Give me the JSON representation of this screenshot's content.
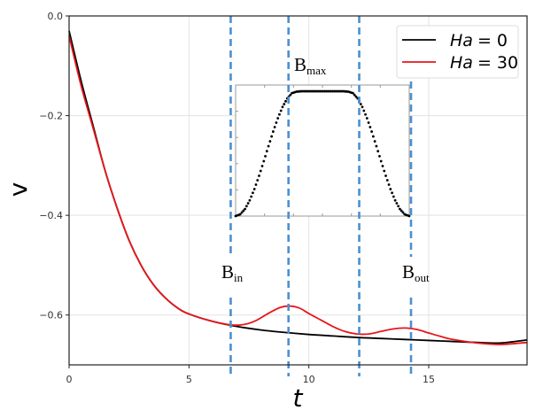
{
  "chart_data": [
    {
      "type": "line",
      "xlabel": "t",
      "ylabel": "v",
      "xlim": [
        0,
        19.1
      ],
      "ylim": [
        -0.7,
        0.0
      ],
      "xticks": [
        0,
        5,
        10,
        15
      ],
      "xtick_labels": [
        "0",
        "5",
        "10",
        "15"
      ],
      "yticks": [
        0.0,
        -0.2,
        -0.4,
        -0.6
      ],
      "ytick_labels": [
        "0.0",
        "−0.2",
        "−0.4",
        "−0.6"
      ],
      "grid": true,
      "legend_placement": "top-right",
      "series": [
        {
          "name": "Ha = 0",
          "legend_label": "Ha",
          "legend_value": "= 0",
          "color": "#000000",
          "x": [
            0,
            0.5,
            1,
            1.5,
            2,
            2.5,
            3,
            3.5,
            4,
            4.5,
            5,
            6,
            7,
            8,
            9,
            10,
            11,
            12,
            13,
            14,
            15,
            16,
            17,
            18,
            19.1
          ],
          "y": [
            -0.03,
            -0.13,
            -0.22,
            -0.31,
            -0.385,
            -0.45,
            -0.5,
            -0.538,
            -0.565,
            -0.585,
            -0.598,
            -0.613,
            -0.623,
            -0.63,
            -0.635,
            -0.639,
            -0.642,
            -0.645,
            -0.647,
            -0.649,
            -0.651,
            -0.653,
            -0.655,
            -0.656,
            -0.65
          ]
        },
        {
          "name": "Ha = 30",
          "legend_label": "Ha",
          "legend_value": "= 30",
          "color": "#e8161b",
          "x": [
            0,
            0.5,
            1,
            1.5,
            2,
            2.5,
            3,
            3.5,
            4,
            4.5,
            5,
            6,
            6.8,
            7.3,
            7.8,
            8.3,
            8.8,
            9.2,
            9.6,
            10,
            10.5,
            11,
            11.5,
            12,
            12.5,
            13,
            13.5,
            14,
            14.5,
            15,
            15.5,
            16,
            17,
            18,
            19.1
          ],
          "y": [
            -0.04,
            -0.14,
            -0.225,
            -0.31,
            -0.385,
            -0.45,
            -0.5,
            -0.538,
            -0.565,
            -0.585,
            -0.598,
            -0.613,
            -0.62,
            -0.619,
            -0.611,
            -0.597,
            -0.585,
            -0.582,
            -0.586,
            -0.597,
            -0.61,
            -0.623,
            -0.633,
            -0.638,
            -0.638,
            -0.633,
            -0.628,
            -0.626,
            -0.629,
            -0.636,
            -0.643,
            -0.649,
            -0.656,
            -0.659,
            -0.655
          ]
        }
      ],
      "vlines": {
        "color": "#4b8fd0",
        "style": "dashed",
        "x": [
          6.74,
          9.15,
          12.1,
          14.26
        ]
      },
      "annotations": [
        {
          "base": "B",
          "sub": "in"
        },
        {
          "base": "B",
          "sub": "max"
        },
        {
          "base": "B",
          "sub": "out"
        }
      ]
    },
    {
      "type": "scatter",
      "role": "inset",
      "color": "#000000",
      "xlim": [
        6.8,
        14.2
      ],
      "ylim": [
        0,
        1.05
      ],
      "x": [
        6.8,
        7.0,
        7.2,
        7.4,
        7.6,
        7.8,
        8.0,
        8.2,
        8.4,
        8.6,
        8.8,
        9.0,
        9.2,
        9.4,
        9.6,
        9.8,
        10.0,
        10.2,
        10.4,
        10.6,
        10.8,
        11.0,
        11.2,
        11.4,
        11.6,
        11.8,
        12.0,
        12.2,
        12.4,
        12.6,
        12.8,
        13.0,
        13.2,
        13.4,
        13.6,
        13.8,
        14.0,
        14.2
      ],
      "y": [
        0,
        0.015,
        0.057,
        0.126,
        0.216,
        0.323,
        0.44,
        0.56,
        0.677,
        0.784,
        0.874,
        0.943,
        0.985,
        0.997,
        1,
        1,
        1,
        1,
        1,
        1,
        1,
        1,
        1,
        1,
        0.997,
        0.985,
        0.943,
        0.874,
        0.784,
        0.677,
        0.56,
        0.44,
        0.323,
        0.216,
        0.126,
        0.057,
        0.015,
        0
      ]
    }
  ]
}
